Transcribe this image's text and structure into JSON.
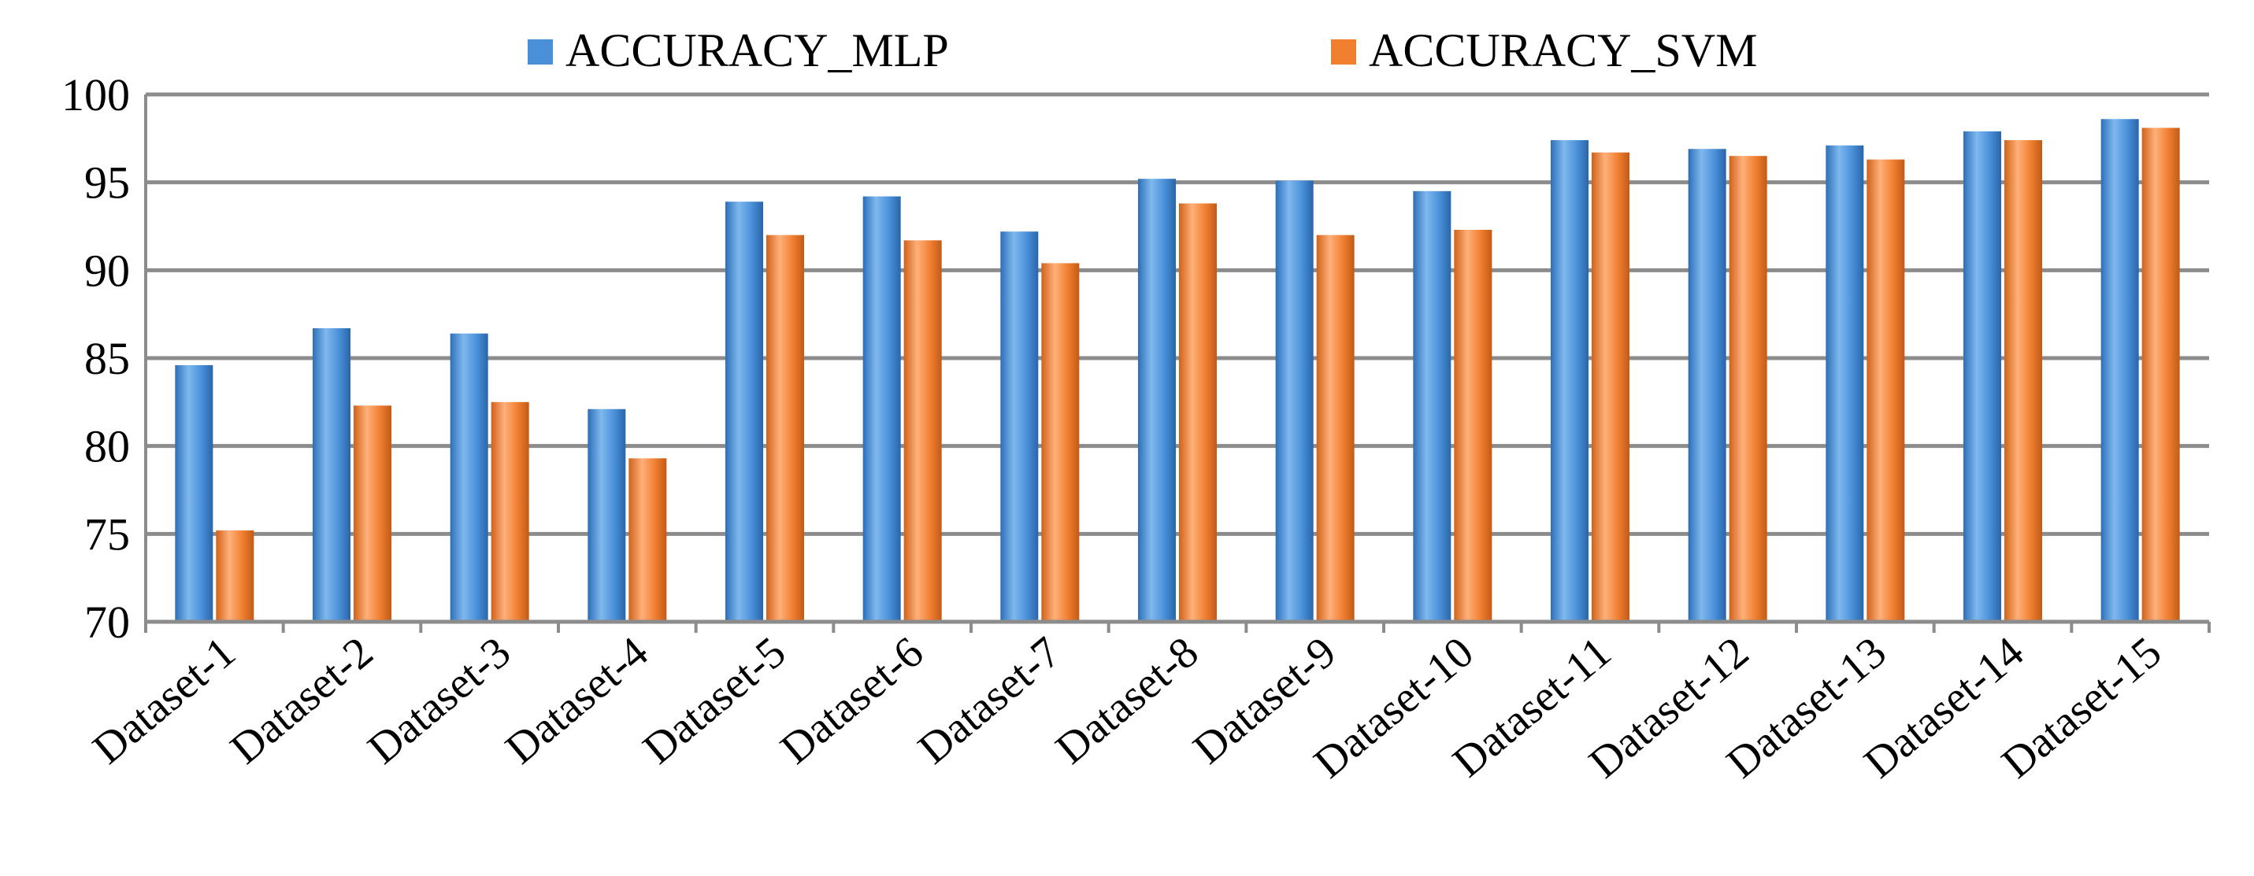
{
  "chart_data": {
    "type": "bar",
    "categories": [
      "Dataset-1",
      "Dataset-2",
      "Dataset-3",
      "Dataset-4",
      "Dataset-5",
      "Dataset-6",
      "Dataset-7",
      "Dataset-8",
      "Dataset-9",
      "Dataset-10",
      "Dataset-11",
      "Dataset-12",
      "Dataset-13",
      "Dataset-14",
      "Dataset-15"
    ],
    "series": [
      {
        "name": "ACCURACY_MLP",
        "color": "#4a90d9",
        "values": [
          84.6,
          86.7,
          86.4,
          82.1,
          93.9,
          94.2,
          92.2,
          95.2,
          95.1,
          94.5,
          97.4,
          96.9,
          97.1,
          97.9,
          98.6
        ]
      },
      {
        "name": "ACCURACY_SVM",
        "color": "#f07f30",
        "values": [
          75.2,
          82.3,
          82.5,
          79.3,
          92.0,
          91.7,
          90.4,
          93.8,
          92.0,
          92.3,
          96.7,
          96.5,
          96.3,
          97.4,
          98.1
        ]
      }
    ],
    "ylim": [
      70,
      100
    ],
    "yticks": [
      "70",
      "75",
      "80",
      "85",
      "90",
      "95",
      "100"
    ],
    "grid": true,
    "legend_position": "top-center",
    "title": "",
    "xlabel": "",
    "ylabel": ""
  }
}
